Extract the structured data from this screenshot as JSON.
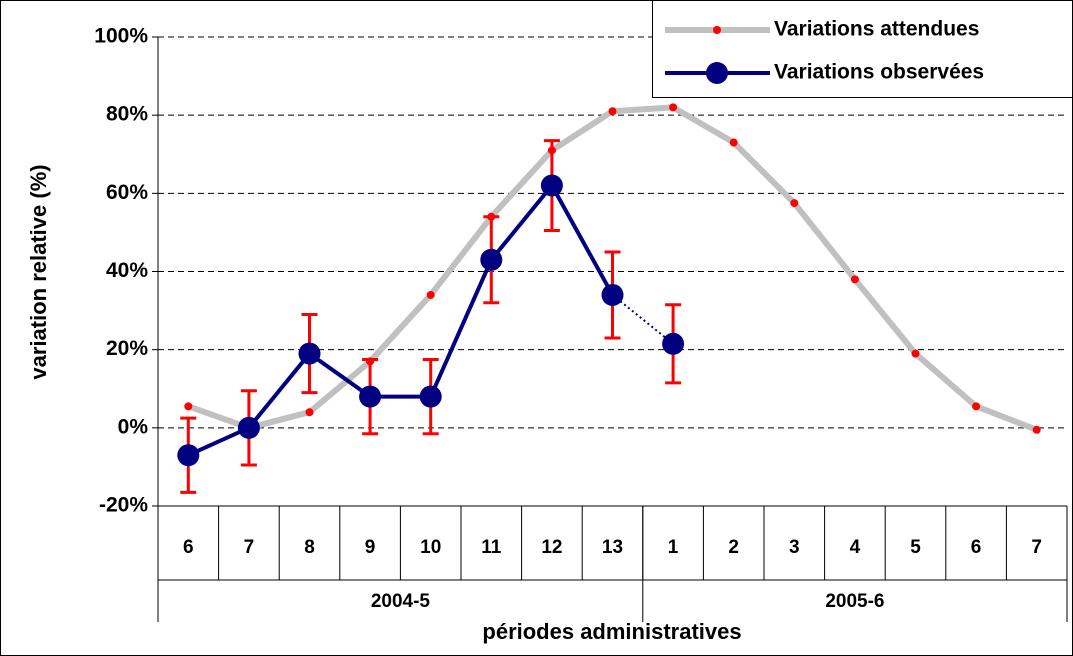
{
  "chart_data": {
    "type": "line",
    "y_label": "variation relative (%)",
    "x_label": "périodes administratives",
    "categories": [
      "6",
      "7",
      "8",
      "9",
      "10",
      "11",
      "12",
      "13",
      "1",
      "2",
      "3",
      "4",
      "5",
      "6",
      "7"
    ],
    "x_groups": [
      {
        "label": "2004-5",
        "size": 8
      },
      {
        "label": "2005-6",
        "size": 7
      }
    ],
    "series": [
      {
        "name": "Variations attendues",
        "color": "#c0c0c0",
        "marker_color": "#ff0000",
        "values": [
          5.5,
          0,
          4,
          17,
          34,
          54,
          71,
          81,
          82,
          73,
          57.5,
          38,
          19,
          5.5,
          -0.5
        ]
      },
      {
        "name": "Variations observées",
        "color": "#000080",
        "error_color": "#ff0000",
        "dotted_last_segment": true,
        "values": [
          -7,
          0,
          19,
          8,
          8,
          43,
          62,
          34,
          21.5,
          null,
          null,
          null,
          null,
          null,
          null
        ],
        "errors": [
          9.5,
          9.5,
          10,
          9.5,
          9.5,
          11,
          11.5,
          11,
          10,
          null,
          null,
          null,
          null,
          null,
          null
        ]
      }
    ],
    "ylim": [
      -20,
      100
    ],
    "yticks": [
      {
        "value": -20,
        "label": "-20%"
      },
      {
        "value": 0,
        "label": "0%"
      },
      {
        "value": 20,
        "label": "20%"
      },
      {
        "value": 40,
        "label": "40%"
      },
      {
        "value": 60,
        "label": "60%"
      },
      {
        "value": 80,
        "label": "80%"
      },
      {
        "value": 100,
        "label": "100%"
      }
    ],
    "grid": true,
    "legend": "top-right"
  }
}
